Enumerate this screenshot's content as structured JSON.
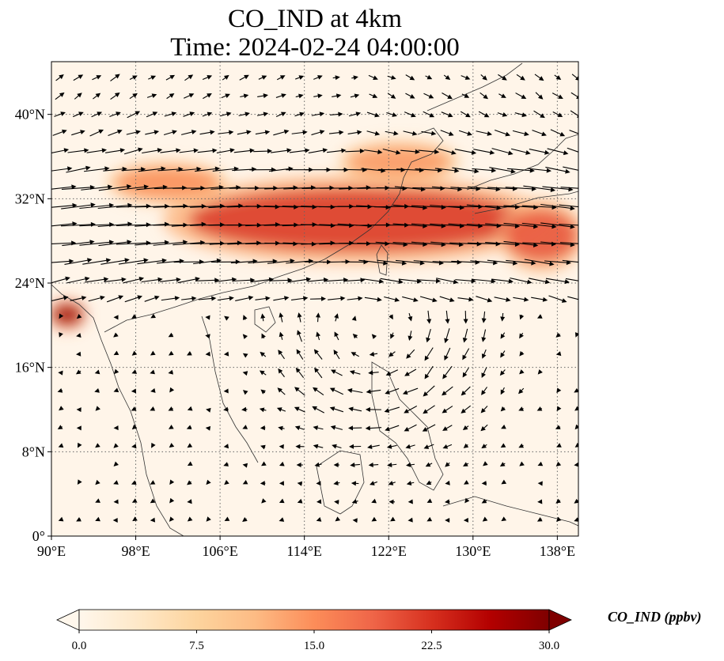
{
  "title": {
    "line1": "CO_IND at 4km",
    "line2": "Time: 2024-02-24 04:00:00"
  },
  "map": {
    "lon_range": [
      90,
      140
    ],
    "lat_range": [
      0,
      45
    ],
    "lon_ticks": [
      "90°E",
      "98°E",
      "106°E",
      "114°E",
      "122°E",
      "130°E",
      "138°E"
    ],
    "lon_tick_values": [
      90,
      98,
      106,
      114,
      122,
      130,
      138
    ],
    "lat_ticks": [
      "0°",
      "8°N",
      "16°N",
      "24°N",
      "32°N",
      "40°N"
    ],
    "lat_tick_values": [
      0,
      8,
      16,
      24,
      32,
      40
    ],
    "gridlines": "dotted",
    "field": "CO_IND concentration at 4 km with wind vectors",
    "high_bands": [
      {
        "lon": [
          103,
          135
        ],
        "lat": [
          27,
          33
        ],
        "level": 22
      },
      {
        "lon": [
          133,
          140
        ],
        "lat": [
          26,
          31
        ],
        "level": 20
      },
      {
        "lon": [
          96,
          106
        ],
        "lat": [
          32,
          35
        ],
        "level": 15
      },
      {
        "lon": [
          118,
          128
        ],
        "lat": [
          34,
          37
        ],
        "level": 14
      },
      {
        "lon": [
          90,
          93
        ],
        "lat": [
          20,
          22
        ],
        "level": 28
      }
    ]
  },
  "colorbar": {
    "label": "CO_IND (ppbv)",
    "min": 0,
    "max": 30,
    "ticks": [
      "0.0",
      "7.5",
      "15.0",
      "22.5",
      "30.0"
    ],
    "tick_values": [
      0,
      7.5,
      15,
      22.5,
      30
    ],
    "colormap": "OrRd",
    "extend": "both",
    "colors": [
      "#fff7ec",
      "#fee8c8",
      "#fdd49e",
      "#fdbb84",
      "#fc8d59",
      "#ef6548",
      "#d7301f",
      "#b30000",
      "#7f0000"
    ]
  }
}
